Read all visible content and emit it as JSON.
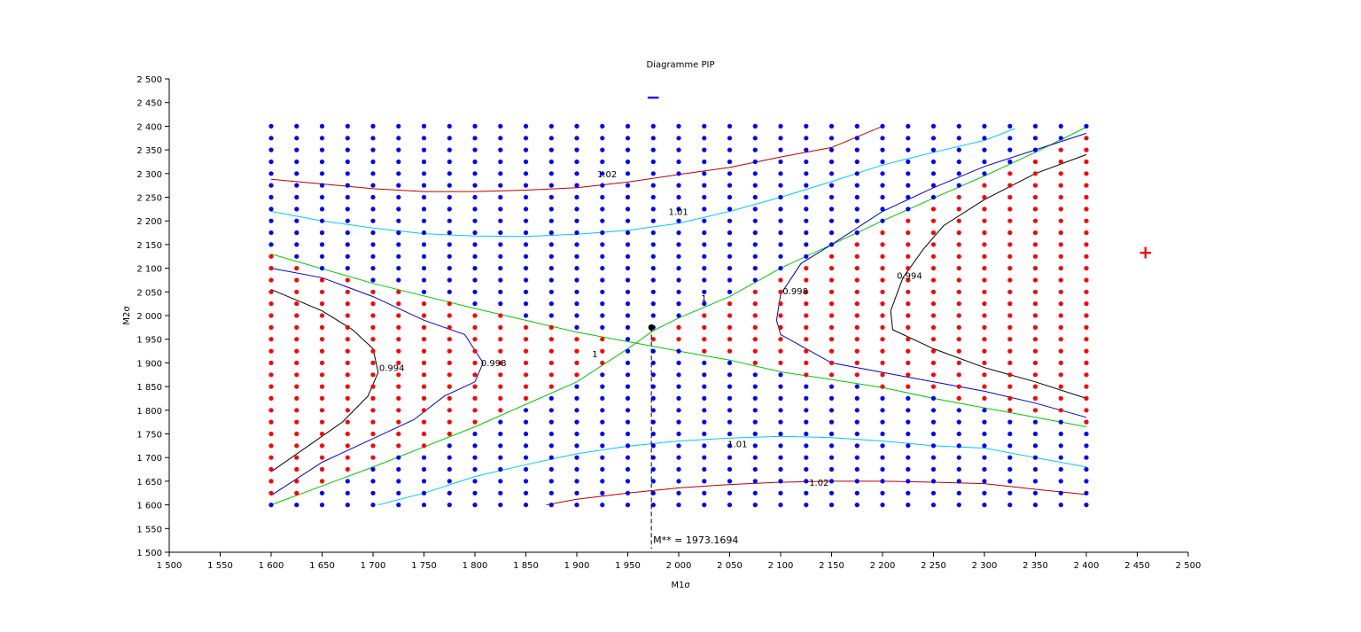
{
  "chart_data": {
    "type": "scatter",
    "title": "Diagramme PIP",
    "xlabel": "M1σ",
    "ylabel": "M2σ",
    "xlim": [
      1500,
      2500
    ],
    "ylim": [
      1500,
      2500
    ],
    "x_ticks": [
      1500,
      1550,
      1600,
      1650,
      1700,
      1750,
      1800,
      1850,
      1900,
      1950,
      2000,
      2050,
      2100,
      2150,
      2200,
      2250,
      2300,
      2350,
      2400,
      2450,
      2500
    ],
    "y_ticks": [
      1500,
      1550,
      1600,
      1650,
      1700,
      1750,
      1800,
      1850,
      1900,
      1950,
      2000,
      2050,
      2100,
      2150,
      2200,
      2250,
      2300,
      2350,
      2400,
      2450,
      2500
    ],
    "x_tick_labels": [
      "1 500",
      "1 550",
      "1 600",
      "1 650",
      "1 700",
      "1 750",
      "1 800",
      "1 850",
      "1 900",
      "1 950",
      "2 000",
      "2 050",
      "2 100",
      "2 150",
      "2 200",
      "2 250",
      "2 300",
      "2 350",
      "2 400",
      "2 450",
      "2 500"
    ],
    "y_tick_labels": [
      "1 500",
      "1 550",
      "1 600",
      "1 650",
      "1 700",
      "1 750",
      "1 800",
      "1 850",
      "1 900",
      "1 950",
      "2 000",
      "2 050",
      "2 100",
      "2 150",
      "2 200",
      "2 250",
      "2 300",
      "2 350",
      "2 400",
      "2 450",
      "2 500"
    ],
    "grid": false,
    "legend_markers": [
      {
        "symbol": "−",
        "color": "#0000ff",
        "x": 1975,
        "y": 2460
      },
      {
        "symbol": "+",
        "color": "#ff0000",
        "x": 2458,
        "y": 2132
      }
    ],
    "point_grid": {
      "x_start": 1600,
      "x_end": 2400,
      "x_step": 25,
      "y_start": 1600,
      "y_end": 2400,
      "y_step": 25,
      "colors": {
        "stable": "#0000ff",
        "unstable": "#ff0000"
      },
      "rule": "red where region between the two green level-1 curves on left and right sides"
    },
    "contours": [
      {
        "level": "1.02",
        "color": "#b40000",
        "label_at": [
          1920,
          2292
        ],
        "points": [
          [
            1600,
            2288
          ],
          [
            1650,
            2278
          ],
          [
            1700,
            2268
          ],
          [
            1750,
            2262
          ],
          [
            1800,
            2262
          ],
          [
            1850,
            2265
          ],
          [
            1900,
            2270
          ],
          [
            1950,
            2282
          ],
          [
            2000,
            2298
          ],
          [
            2050,
            2313
          ],
          [
            2100,
            2335
          ],
          [
            2150,
            2355
          ],
          [
            2200,
            2400
          ]
        ]
      },
      {
        "level": "1.01",
        "color": "#00c8ff",
        "label_at": [
          1990,
          2213
        ],
        "points": [
          [
            1600,
            2220
          ],
          [
            1650,
            2200
          ],
          [
            1700,
            2185
          ],
          [
            1750,
            2173
          ],
          [
            1800,
            2168
          ],
          [
            1850,
            2167
          ],
          [
            1900,
            2172
          ],
          [
            1950,
            2180
          ],
          [
            2000,
            2195
          ],
          [
            2050,
            2220
          ],
          [
            2100,
            2250
          ],
          [
            2150,
            2283
          ],
          [
            2200,
            2318
          ],
          [
            2250,
            2345
          ],
          [
            2300,
            2370
          ],
          [
            2330,
            2395
          ]
        ]
      },
      {
        "level": "1",
        "color": "#00c800",
        "label_at": [
          2022,
          2030
        ],
        "points": [
          [
            1600,
            2130
          ],
          [
            1700,
            2068
          ],
          [
            1800,
            2015
          ],
          [
            1900,
            1965
          ],
          [
            1950,
            1945
          ],
          [
            2000,
            1925
          ],
          [
            2050,
            1906
          ],
          [
            2100,
            1881
          ],
          [
            2150,
            1865
          ],
          [
            2200,
            1848
          ],
          [
            2250,
            1825
          ],
          [
            2300,
            1805
          ],
          [
            2350,
            1785
          ],
          [
            2400,
            1765
          ]
        ]
      },
      {
        "level": "1",
        "color": "#00c800",
        "label_at": [
          1915,
          1912
        ],
        "points": [
          [
            1600,
            1600
          ],
          [
            1700,
            1680
          ],
          [
            1800,
            1765
          ],
          [
            1900,
            1860
          ],
          [
            1950,
            1930
          ],
          [
            1975,
            1968
          ],
          [
            2000,
            1995
          ],
          [
            2050,
            2040
          ],
          [
            2100,
            2100
          ],
          [
            2150,
            2150
          ],
          [
            2200,
            2200
          ],
          [
            2250,
            2248
          ],
          [
            2300,
            2295
          ],
          [
            2350,
            2345
          ],
          [
            2400,
            2398
          ]
        ]
      },
      {
        "level": "0.998",
        "color": "#0000c8",
        "label_at": [
          1806,
          1893
        ],
        "points": [
          [
            1600,
            2100
          ],
          [
            1650,
            2080
          ],
          [
            1700,
            2040
          ],
          [
            1750,
            1990
          ],
          [
            1790,
            1960
          ],
          [
            1808,
            1900
          ],
          [
            1800,
            1860
          ],
          [
            1770,
            1830
          ],
          [
            1740,
            1780
          ],
          [
            1700,
            1740
          ],
          [
            1650,
            1690
          ],
          [
            1600,
            1620
          ]
        ]
      },
      {
        "level": "0.998",
        "color": "#0000c8",
        "label_at": [
          2102,
          2045
        ],
        "points": [
          [
            2400,
            2385
          ],
          [
            2350,
            2350
          ],
          [
            2300,
            2315
          ],
          [
            2250,
            2270
          ],
          [
            2200,
            2220
          ],
          [
            2150,
            2150
          ],
          [
            2120,
            2110
          ],
          [
            2100,
            2045
          ],
          [
            2096,
            1990
          ],
          [
            2100,
            1960
          ],
          [
            2150,
            1900
          ],
          [
            2200,
            1880
          ],
          [
            2250,
            1860
          ],
          [
            2300,
            1840
          ],
          [
            2350,
            1815
          ],
          [
            2400,
            1785
          ]
        ]
      },
      {
        "level": "0.994",
        "color": "#000000",
        "label_at": [
          1706,
          1883
        ],
        "points": [
          [
            1600,
            2055
          ],
          [
            1650,
            2010
          ],
          [
            1680,
            1970
          ],
          [
            1700,
            1930
          ],
          [
            1705,
            1880
          ],
          [
            1695,
            1830
          ],
          [
            1670,
            1775
          ],
          [
            1640,
            1730
          ],
          [
            1600,
            1670
          ]
        ]
      },
      {
        "level": "0.994",
        "color": "#000000",
        "label_at": [
          2214,
          2078
        ],
        "points": [
          [
            2400,
            2340
          ],
          [
            2350,
            2300
          ],
          [
            2300,
            2245
          ],
          [
            2260,
            2190
          ],
          [
            2240,
            2140
          ],
          [
            2220,
            2080
          ],
          [
            2208,
            2010
          ],
          [
            2210,
            1970
          ],
          [
            2250,
            1930
          ],
          [
            2300,
            1890
          ],
          [
            2350,
            1860
          ],
          [
            2400,
            1825
          ]
        ]
      },
      {
        "level": "1.01",
        "color": "#00c8ff",
        "label_at": [
          2048,
          1722
        ],
        "points": [
          [
            1705,
            1600
          ],
          [
            1750,
            1625
          ],
          [
            1800,
            1660
          ],
          [
            1850,
            1685
          ],
          [
            1900,
            1708
          ],
          [
            1950,
            1724
          ],
          [
            2000,
            1735
          ],
          [
            2050,
            1741
          ],
          [
            2100,
            1745
          ],
          [
            2150,
            1742
          ],
          [
            2200,
            1735
          ],
          [
            2250,
            1725
          ],
          [
            2300,
            1720
          ],
          [
            2350,
            1700
          ],
          [
            2400,
            1680
          ]
        ]
      },
      {
        "level": "1.02",
        "color": "#b40000",
        "label_at": [
          2128,
          1640
        ],
        "points": [
          [
            1870,
            1600
          ],
          [
            1900,
            1612
          ],
          [
            1950,
            1625
          ],
          [
            2000,
            1636
          ],
          [
            2050,
            1643
          ],
          [
            2100,
            1648
          ],
          [
            2150,
            1650
          ],
          [
            2200,
            1650
          ],
          [
            2250,
            1648
          ],
          [
            2300,
            1645
          ],
          [
            2350,
            1633
          ],
          [
            2400,
            1622
          ]
        ]
      }
    ],
    "optimum": {
      "x": 1973.1694,
      "y": 1975,
      "label": "M** = 1973.1694"
    }
  }
}
